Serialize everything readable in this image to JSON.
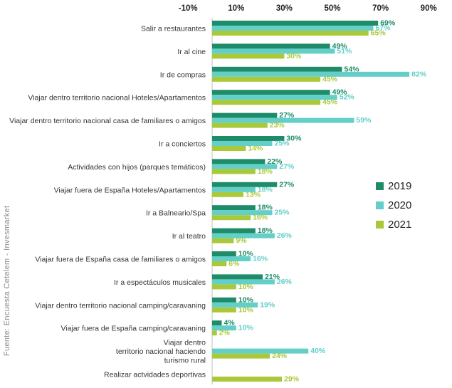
{
  "chart_data": {
    "type": "bar",
    "orientation": "horizontal",
    "x_ticks": [
      "-10%",
      "10%",
      "30%",
      "50%",
      "70%",
      "90%"
    ],
    "xlim": [
      -10,
      90
    ],
    "source": "Fuente: Encuesta Cetelem - Invesmarket",
    "series": [
      {
        "name": "2019",
        "color": "#1e8c68"
      },
      {
        "name": "2020",
        "color": "#64cfc8"
      },
      {
        "name": "2021",
        "color": "#a9c93a"
      }
    ],
    "categories": [
      {
        "label": [
          "Salir a restaurantes"
        ],
        "values": [
          69,
          67,
          65
        ]
      },
      {
        "label": [
          "Ir al cine"
        ],
        "values": [
          49,
          51,
          30
        ]
      },
      {
        "label": [
          "Ir de compras"
        ],
        "values": [
          54,
          82,
          45
        ]
      },
      {
        "label": [
          "Viajar dentro territorio nacional Hoteles/Apartamentos"
        ],
        "values": [
          49,
          52,
          45
        ]
      },
      {
        "label": [
          "Viajar dentro territorio nacional casa de familiares o amigos"
        ],
        "values": [
          27,
          59,
          23
        ]
      },
      {
        "label": [
          "Ir a conciertos"
        ],
        "values": [
          30,
          25,
          14
        ]
      },
      {
        "label": [
          "Actividades con hijos (parques temáticos)"
        ],
        "values": [
          22,
          27,
          18
        ]
      },
      {
        "label": [
          "Viajar fuera de España Hoteles/Apartamentos"
        ],
        "values": [
          27,
          18,
          13
        ]
      },
      {
        "label": [
          "Ir a Balneario/Spa"
        ],
        "values": [
          18,
          25,
          16
        ]
      },
      {
        "label": [
          "Ir al teatro"
        ],
        "values": [
          18,
          26,
          9
        ]
      },
      {
        "label": [
          "Viajar fuera de España casa de familiares o amigos"
        ],
        "values": [
          10,
          16,
          6
        ]
      },
      {
        "label": [
          "Ir a espectáculos musicales"
        ],
        "values": [
          21,
          26,
          10
        ]
      },
      {
        "label": [
          "Viajar dentro territorio nacional camping/caravaning"
        ],
        "values": [
          10,
          19,
          10
        ]
      },
      {
        "label": [
          "Viajar fuera de España camping/caravaning"
        ],
        "values": [
          4,
          10,
          2
        ]
      },
      {
        "label": [
          "Viajar dentro",
          "territorio nacional haciendo",
          "turismo rural"
        ],
        "values": [
          null,
          40,
          24
        ]
      },
      {
        "label": [
          "Realizar actvidades deportivas"
        ],
        "values": [
          null,
          null,
          29
        ]
      }
    ]
  }
}
